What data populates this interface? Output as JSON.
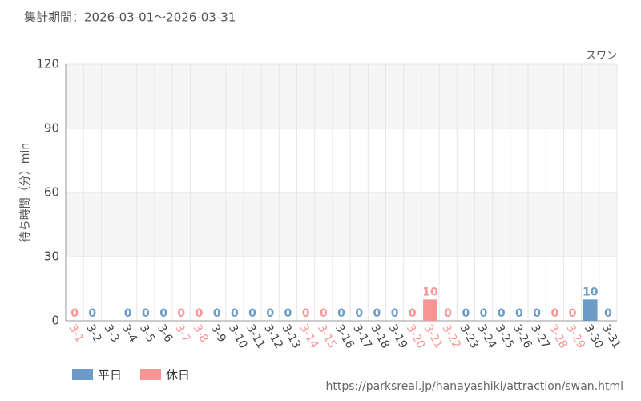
{
  "chart_data": {
    "type": "bar",
    "title": "集計期間：2026-03-01～2026-03-31",
    "subtitle": "スワン",
    "y_label": "待ち時間（分）min",
    "source": "https://parksreal.jp/hanayashiki/attraction/swan.html",
    "categories": [
      "3-1",
      "3-2",
      "3-3",
      "3-4",
      "3-5",
      "3-6",
      "3-7",
      "3-8",
      "3-9",
      "3-10",
      "3-11",
      "3-12",
      "3-13",
      "3-14",
      "3-15",
      "3-16",
      "3-17",
      "3-18",
      "3-19",
      "3-20",
      "3-21",
      "3-22",
      "3-23",
      "3-24",
      "3-25",
      "3-26",
      "3-27",
      "3-28",
      "3-29",
      "3-30",
      "3-31"
    ],
    "series": [
      {
        "name": "平日",
        "color": "#6b9bc7",
        "values": [
          null,
          0,
          null,
          0,
          0,
          0,
          null,
          null,
          0,
          0,
          0,
          0,
          0,
          null,
          null,
          0,
          0,
          0,
          0,
          null,
          null,
          null,
          0,
          0,
          0,
          0,
          0,
          null,
          null,
          10,
          0
        ]
      },
      {
        "name": "休日",
        "color": "#f79595",
        "values": [
          0,
          null,
          null,
          null,
          null,
          null,
          0,
          0,
          null,
          null,
          null,
          null,
          null,
          0,
          0,
          null,
          null,
          null,
          null,
          0,
          10,
          0,
          null,
          null,
          null,
          null,
          null,
          0,
          0,
          null,
          null
        ]
      }
    ],
    "ylim": [
      0,
      120
    ],
    "yticks": [
      0,
      30,
      60,
      90,
      120
    ],
    "grid": true
  }
}
